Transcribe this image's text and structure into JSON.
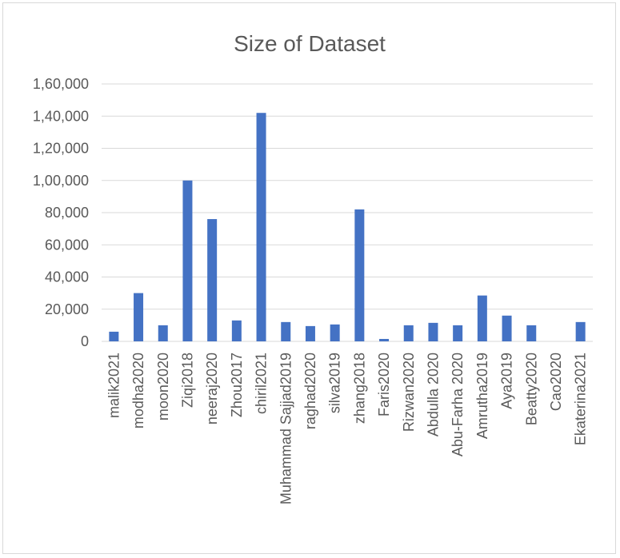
{
  "chart_data": {
    "type": "bar",
    "title": "Size of Dataset",
    "xlabel": "",
    "ylabel": "",
    "ylim": [
      0,
      160000
    ],
    "yticks": [
      0,
      20000,
      40000,
      60000,
      80000,
      100000,
      120000,
      140000,
      160000
    ],
    "ytick_labels": [
      "0",
      "20,000",
      "40,000",
      "60,000",
      "80,000",
      "1,00,000",
      "1,20,000",
      "1,40,000",
      "1,60,000"
    ],
    "grid": true,
    "legend": "none",
    "bar_color": "#4472c4",
    "categories": [
      "malik2021",
      "modha2020",
      "moon2020",
      "Ziqi2018",
      "neeraj2020",
      "Zhou2017",
      "chiril2021",
      "Muhammad Sajjad2019",
      "raghad2020",
      "silva2019",
      "zhang2018",
      "Faris2020",
      "Rizwan2020",
      "Abdulla 2020",
      "Abu-Farha 2020",
      "Amrutha2019",
      "Aya2019",
      "Beatty2020",
      "Cao2020",
      "Ekaterina2021"
    ],
    "values": [
      6000,
      30000,
      10000,
      100000,
      76000,
      13000,
      142000,
      12000,
      9500,
      10500,
      82000,
      1500,
      10000,
      11500,
      10000,
      28500,
      16000,
      10000,
      0,
      12000
    ]
  }
}
